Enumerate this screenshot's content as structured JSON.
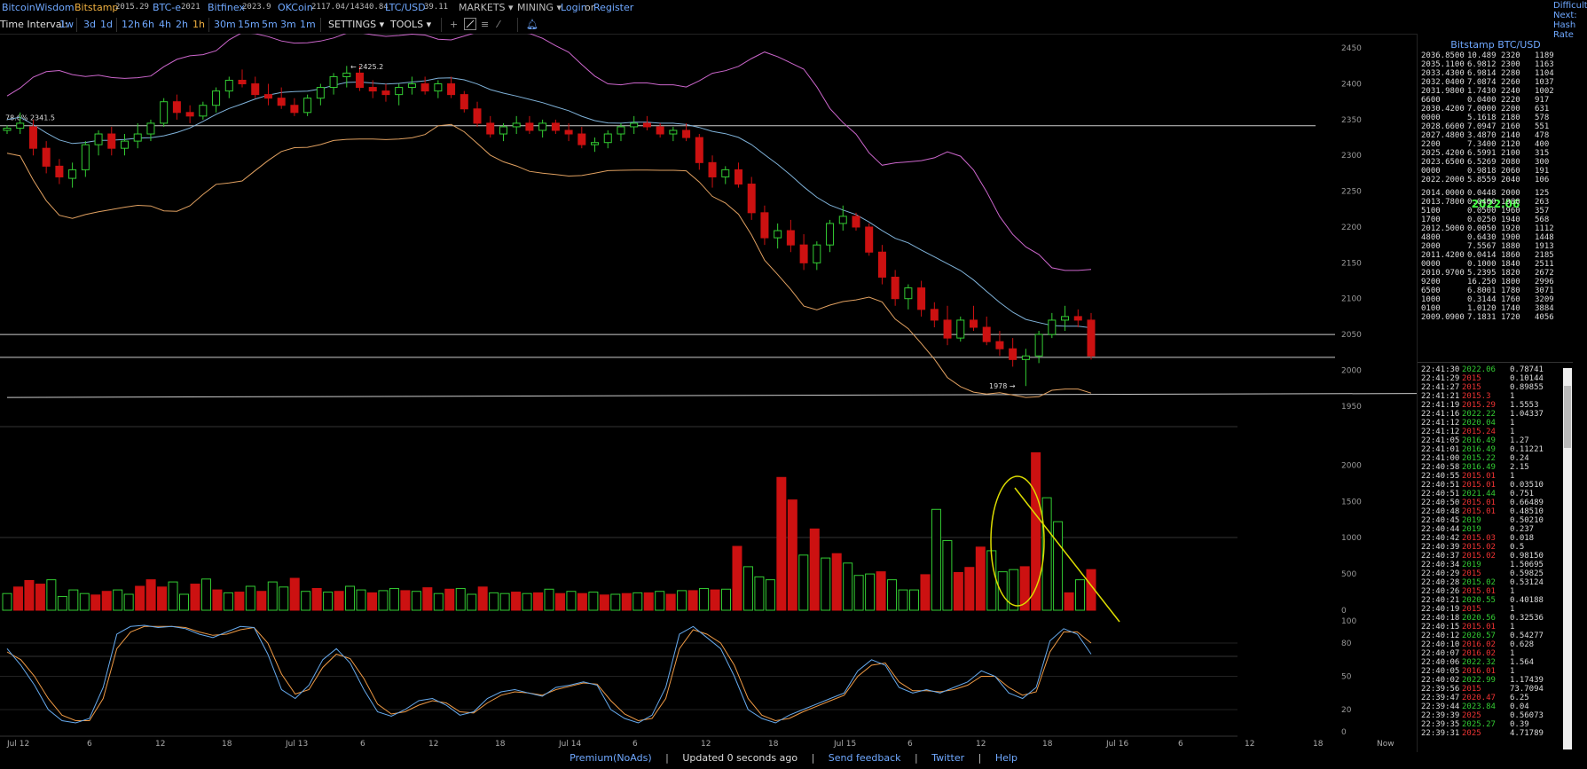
{
  "topnav": {
    "brand": "BitcoinWisdom",
    "exchanges": [
      {
        "name": "Bitstamp",
        "price": "2015.29"
      },
      {
        "name": "BTC-e",
        "price": "2021"
      },
      {
        "name": "Bitfinex",
        "price": "2023.9"
      },
      {
        "name": "OKCoin",
        "price": "2117.04/14340.84"
      },
      {
        "name": "LTC/USD",
        "price": "39.11"
      }
    ],
    "markets_label": "MARKETS",
    "mining_label": "MINING",
    "login_label": "Login",
    "or_label": "or",
    "register_label": "Register"
  },
  "timebar": {
    "label": "Time Interval:",
    "intervals": [
      "1w",
      "3d",
      "1d",
      "12h",
      "6h",
      "4h",
      "2h",
      "1h",
      "30m",
      "15m",
      "5m",
      "3m",
      "1m"
    ],
    "active": "1h",
    "settings_label": "SETTINGS",
    "tools_label": "TOOLS"
  },
  "far_right": {
    "l1": "Difficulty",
    "l2": "Next:",
    "l3": "Hash Rate"
  },
  "chart": {
    "price_axis": [
      "2450",
      "2400",
      "2350",
      "2300",
      "2250",
      "2200",
      "2150",
      "2100",
      "2050",
      "2000",
      "1950"
    ],
    "volume_axis": [
      "2000",
      "1500",
      "1000",
      "500",
      "0"
    ],
    "stoch_axis": [
      "100",
      "80",
      "50",
      "20",
      "0"
    ],
    "time_labels": [
      "Jul 12",
      "6",
      "12",
      "18",
      "Jul 13",
      "6",
      "12",
      "18",
      "Jul 14",
      "6",
      "12",
      "18",
      "Jul 15",
      "6",
      "12",
      "18",
      "Jul 16",
      "6",
      "12",
      "18",
      "Now"
    ],
    "annotations": {
      "high": "← 2425.2",
      "fib": "78.6% 2341.5",
      "low": "1978 →"
    }
  },
  "chart_data": {
    "type": "candlestick",
    "title": "Bitstamp BTC/USD",
    "ylim": [
      1925,
      2470
    ],
    "candles_ohlc": [
      [
        2335,
        2342,
        2330,
        2338
      ],
      [
        2338,
        2360,
        2330,
        2345
      ],
      [
        2340,
        2350,
        2300,
        2310
      ],
      [
        2310,
        2320,
        2275,
        2285
      ],
      [
        2285,
        2295,
        2260,
        2270
      ],
      [
        2268,
        2290,
        2255,
        2280
      ],
      [
        2280,
        2320,
        2270,
        2315
      ],
      [
        2315,
        2335,
        2300,
        2330
      ],
      [
        2330,
        2340,
        2300,
        2310
      ],
      [
        2310,
        2330,
        2300,
        2320
      ],
      [
        2320,
        2345,
        2310,
        2330
      ],
      [
        2330,
        2350,
        2320,
        2345
      ],
      [
        2345,
        2380,
        2340,
        2375
      ],
      [
        2375,
        2385,
        2350,
        2360
      ],
      [
        2360,
        2370,
        2345,
        2355
      ],
      [
        2355,
        2375,
        2350,
        2370
      ],
      [
        2370,
        2395,
        2360,
        2390
      ],
      [
        2390,
        2410,
        2380,
        2405
      ],
      [
        2405,
        2420,
        2395,
        2400
      ],
      [
        2400,
        2410,
        2380,
        2385
      ],
      [
        2385,
        2400,
        2370,
        2380
      ],
      [
        2380,
        2395,
        2365,
        2370
      ],
      [
        2370,
        2380,
        2355,
        2360
      ],
      [
        2360,
        2385,
        2355,
        2380
      ],
      [
        2380,
        2400,
        2370,
        2395
      ],
      [
        2395,
        2415,
        2385,
        2410
      ],
      [
        2410,
        2425,
        2395,
        2415
      ],
      [
        2415,
        2425,
        2390,
        2395
      ],
      [
        2395,
        2405,
        2380,
        2390
      ],
      [
        2390,
        2400,
        2375,
        2385
      ],
      [
        2385,
        2400,
        2370,
        2395
      ],
      [
        2395,
        2410,
        2385,
        2400
      ],
      [
        2400,
        2410,
        2385,
        2390
      ],
      [
        2390,
        2405,
        2380,
        2400
      ],
      [
        2400,
        2410,
        2380,
        2385
      ],
      [
        2385,
        2390,
        2360,
        2365
      ],
      [
        2365,
        2375,
        2340,
        2345
      ],
      [
        2345,
        2355,
        2325,
        2330
      ],
      [
        2330,
        2345,
        2320,
        2340
      ],
      [
        2340,
        2355,
        2330,
        2345
      ],
      [
        2345,
        2355,
        2330,
        2335
      ],
      [
        2335,
        2350,
        2325,
        2345
      ],
      [
        2345,
        2350,
        2330,
        2335
      ],
      [
        2335,
        2345,
        2320,
        2330
      ],
      [
        2330,
        2340,
        2310,
        2315
      ],
      [
        2315,
        2325,
        2305,
        2318
      ],
      [
        2318,
        2335,
        2310,
        2330
      ],
      [
        2330,
        2345,
        2320,
        2340
      ],
      [
        2340,
        2355,
        2330,
        2345
      ],
      [
        2345,
        2355,
        2335,
        2340
      ],
      [
        2340,
        2345,
        2325,
        2330
      ],
      [
        2330,
        2340,
        2320,
        2335
      ],
      [
        2335,
        2345,
        2320,
        2325
      ],
      [
        2325,
        2330,
        2280,
        2290
      ],
      [
        2290,
        2300,
        2255,
        2270
      ],
      [
        2270,
        2285,
        2260,
        2280
      ],
      [
        2280,
        2290,
        2255,
        2260
      ],
      [
        2260,
        2270,
        2210,
        2220
      ],
      [
        2220,
        2230,
        2175,
        2185
      ],
      [
        2185,
        2205,
        2170,
        2195
      ],
      [
        2195,
        2210,
        2165,
        2175
      ],
      [
        2175,
        2190,
        2140,
        2150
      ],
      [
        2150,
        2180,
        2140,
        2175
      ],
      [
        2175,
        2210,
        2165,
        2205
      ],
      [
        2205,
        2230,
        2195,
        2215
      ],
      [
        2215,
        2220,
        2195,
        2200
      ],
      [
        2200,
        2205,
        2160,
        2165
      ],
      [
        2165,
        2175,
        2120,
        2130
      ],
      [
        2130,
        2140,
        2090,
        2100
      ],
      [
        2100,
        2120,
        2085,
        2115
      ],
      [
        2115,
        2125,
        2075,
        2085
      ],
      [
        2085,
        2095,
        2060,
        2070
      ],
      [
        2070,
        2090,
        2035,
        2045
      ],
      [
        2045,
        2075,
        2040,
        2070
      ],
      [
        2070,
        2090,
        2055,
        2060
      ],
      [
        2060,
        2075,
        2035,
        2040
      ],
      [
        2040,
        2055,
        2020,
        2030
      ],
      [
        2030,
        2045,
        2005,
        2015
      ],
      [
        2015,
        2030,
        1978,
        2020
      ],
      [
        2020,
        2055,
        2010,
        2050
      ],
      [
        2050,
        2080,
        2045,
        2070
      ],
      [
        2070,
        2090,
        2055,
        2075
      ],
      [
        2075,
        2085,
        2060,
        2070
      ],
      [
        2070,
        2080,
        2015,
        2020
      ]
    ],
    "volume": [
      230,
      320,
      410,
      360,
      420,
      190,
      280,
      230,
      210,
      260,
      280,
      220,
      330,
      420,
      320,
      390,
      220,
      360,
      430,
      280,
      240,
      250,
      330,
      260,
      390,
      320,
      440,
      260,
      300,
      250,
      260,
      330,
      280,
      240,
      270,
      300,
      270,
      260,
      310,
      230,
      290,
      300,
      220,
      320,
      240,
      230,
      250,
      230,
      240,
      290,
      230,
      260,
      230,
      250,
      210,
      220,
      230,
      240,
      240,
      260,
      220,
      270,
      270,
      300,
      280,
      290,
      880,
      600,
      460,
      420,
      1830,
      1520,
      760,
      1120,
      720,
      780,
      650,
      480,
      500,
      530,
      420,
      280,
      280,
      490,
      1390,
      960,
      520,
      590,
      870,
      820,
      530,
      560,
      600,
      2170,
      1550,
      1220,
      240,
      420,
      560
    ],
    "stoch_k": [
      75,
      60,
      42,
      20,
      10,
      8,
      12,
      40,
      88,
      95,
      96,
      94,
      95,
      93,
      88,
      85,
      90,
      95,
      94,
      70,
      38,
      30,
      42,
      65,
      75,
      62,
      38,
      18,
      14,
      20,
      28,
      30,
      24,
      15,
      18,
      30,
      36,
      38,
      35,
      32,
      40,
      42,
      45,
      42,
      20,
      12,
      8,
      15,
      40,
      88,
      95,
      85,
      75,
      50,
      20,
      12,
      8,
      15,
      20,
      25,
      30,
      35,
      55,
      65,
      60,
      40,
      35,
      38,
      35,
      40,
      45,
      55,
      50,
      35,
      30,
      40,
      82,
      93,
      88,
      70
    ],
    "stoch_d": [
      72,
      65,
      50,
      30,
      15,
      10,
      10,
      30,
      75,
      90,
      95,
      95,
      95,
      94,
      90,
      87,
      88,
      92,
      94,
      80,
      52,
      34,
      38,
      58,
      70,
      66,
      48,
      25,
      16,
      18,
      24,
      28,
      26,
      18,
      17,
      26,
      33,
      36,
      35,
      33,
      38,
      41,
      44,
      43,
      28,
      16,
      10,
      12,
      30,
      75,
      92,
      88,
      80,
      60,
      30,
      15,
      10,
      12,
      18,
      23,
      28,
      33,
      50,
      60,
      62,
      45,
      37,
      37,
      36,
      38,
      42,
      50,
      50,
      40,
      33,
      36,
      72,
      90,
      90,
      80
    ]
  },
  "orderbook": {
    "asks": [
      [
        "2036.8500",
        "10.489",
        "2320",
        "1189"
      ],
      [
        "2035.1100",
        "6.9812",
        "2300",
        "1163"
      ],
      [
        "2033.4300",
        "6.9814",
        "2280",
        "1104"
      ],
      [
        "2032.0400",
        "7.0874",
        "2260",
        "1037"
      ],
      [
        "2031.9800",
        "1.7430",
        "2240",
        "1002"
      ],
      [
        "6600",
        "0.0400",
        "2220",
        "917"
      ],
      [
        "2030.4200",
        "7.0000",
        "2200",
        "631"
      ],
      [
        "0000",
        "5.1618",
        "2180",
        "578"
      ],
      [
        "2028.6600",
        "7.0947",
        "2160",
        "551"
      ],
      [
        "2027.4800",
        "3.4870",
        "2140",
        "478"
      ],
      [
        "2200",
        "7.3400",
        "2120",
        "400"
      ],
      [
        "2025.4200",
        "6.5991",
        "2100",
        "315"
      ],
      [
        "2023.6500",
        "6.5269",
        "2080",
        "300"
      ],
      [
        "0000",
        "0.9818",
        "2060",
        "191"
      ],
      [
        "2022.2000",
        "5.8559",
        "2040",
        "106"
      ]
    ],
    "mid_price": "2022.06",
    "bids": [
      [
        "2014.0000",
        "0.0448",
        "2000",
        "125"
      ],
      [
        "2013.7800",
        "0.0400",
        "1980",
        "263"
      ],
      [
        "5100",
        "0.0500",
        "1960",
        "357"
      ],
      [
        "1700",
        "0.0250",
        "1940",
        "568"
      ],
      [
        "2012.5000",
        "0.0050",
        "1920",
        "1112"
      ],
      [
        "4800",
        "0.6430",
        "1900",
        "1448"
      ],
      [
        "2000",
        "7.5567",
        "1880",
        "1913"
      ],
      [
        "2011.4200",
        "0.0414",
        "1860",
        "2185"
      ],
      [
        "0000",
        "0.1000",
        "1840",
        "2511"
      ],
      [
        "2010.9700",
        "5.2395",
        "1820",
        "2672"
      ],
      [
        "9200",
        "16.250",
        "1800",
        "2996"
      ],
      [
        "6500",
        "6.8001",
        "1780",
        "3071"
      ],
      [
        "1000",
        "0.3144",
        "1760",
        "3209"
      ],
      [
        "0100",
        "1.0120",
        "1740",
        "3884"
      ],
      [
        "2009.0900",
        "7.1831",
        "1720",
        "4056"
      ]
    ]
  },
  "trades": [
    [
      "22:41:30",
      "2022.06",
      "g",
      "0.78741"
    ],
    [
      "22:41:29",
      "2015",
      "r",
      "0.10144"
    ],
    [
      "22:41:27",
      "2015",
      "r",
      "0.89855"
    ],
    [
      "22:41:21",
      "2015.3",
      "r",
      "1"
    ],
    [
      "22:41:19",
      "2015.29",
      "r",
      "1.5553"
    ],
    [
      "22:41:16",
      "2022.22",
      "g",
      "1.04337"
    ],
    [
      "22:41:12",
      "2020.04",
      "g",
      "1"
    ],
    [
      "22:41:12",
      "2015.24",
      "r",
      "1"
    ],
    [
      "22:41:05",
      "2016.49",
      "g",
      "1.27"
    ],
    [
      "22:41:01",
      "2016.49",
      "g",
      "0.11221"
    ],
    [
      "22:41:00",
      "2015.22",
      "g",
      "0.24"
    ],
    [
      "22:40:58",
      "2016.49",
      "g",
      "2.15"
    ],
    [
      "22:40:55",
      "2015.01",
      "r",
      "1"
    ],
    [
      "22:40:51",
      "2015.01",
      "r",
      "0.03510"
    ],
    [
      "22:40:51",
      "2021.44",
      "g",
      "0.751"
    ],
    [
      "22:40:50",
      "2015.01",
      "r",
      "0.66489"
    ],
    [
      "22:40:48",
      "2015.01",
      "r",
      "0.48510"
    ],
    [
      "22:40:45",
      "2019",
      "g",
      "0.50210"
    ],
    [
      "22:40:44",
      "2019",
      "g",
      "0.237"
    ],
    [
      "22:40:42",
      "2015.03",
      "r",
      "0.018"
    ],
    [
      "22:40:39",
      "2015.02",
      "r",
      "0.5"
    ],
    [
      "22:40:37",
      "2015.02",
      "r",
      "0.98150"
    ],
    [
      "22:40:34",
      "2019",
      "g",
      "1.50695"
    ],
    [
      "22:40:29",
      "2015",
      "r",
      "0.59825"
    ],
    [
      "22:40:28",
      "2015.02",
      "g",
      "0.53124"
    ],
    [
      "22:40:26",
      "2015.01",
      "r",
      "1"
    ],
    [
      "22:40:21",
      "2020.55",
      "g",
      "0.40188"
    ],
    [
      "22:40:19",
      "2015",
      "r",
      "1"
    ],
    [
      "22:40:18",
      "2020.56",
      "g",
      "0.32536"
    ],
    [
      "22:40:15",
      "2015.01",
      "r",
      "1"
    ],
    [
      "22:40:12",
      "2020.57",
      "g",
      "0.54277"
    ],
    [
      "22:40:10",
      "2016.02",
      "r",
      "0.628"
    ],
    [
      "22:40:07",
      "2016.02",
      "r",
      "1"
    ],
    [
      "22:40:06",
      "2022.32",
      "g",
      "1.564"
    ],
    [
      "22:40:05",
      "2016.01",
      "r",
      "1"
    ],
    [
      "22:40:02",
      "2022.99",
      "g",
      "1.17439"
    ],
    [
      "22:39:56",
      "2015",
      "r",
      "73.7094"
    ],
    [
      "22:39:47",
      "2020.47",
      "r",
      "6.25"
    ],
    [
      "22:39:44",
      "2023.84",
      "g",
      "0.04"
    ],
    [
      "22:39:39",
      "2025",
      "r",
      "0.56073"
    ],
    [
      "22:39:35",
      "2025.27",
      "g",
      "0.39"
    ],
    [
      "22:39:31",
      "2025",
      "r",
      "4.71789"
    ]
  ],
  "footer": {
    "premium": "Premium(NoAds)",
    "updated": "Updated 0 seconds ago",
    "feedback": "Send feedback",
    "twitter": "Twitter",
    "help": "Help"
  },
  "colors": {
    "up": "#33cc33",
    "down": "#cc1111",
    "upper_band": "#cc66cc",
    "mid_band": "#7fb2d9",
    "lower_band": "#e0a060",
    "stoch_k": "#66aaee",
    "stoch_d": "#ee9944",
    "trend": "#dddd00",
    "link": "#6fa8ff"
  }
}
